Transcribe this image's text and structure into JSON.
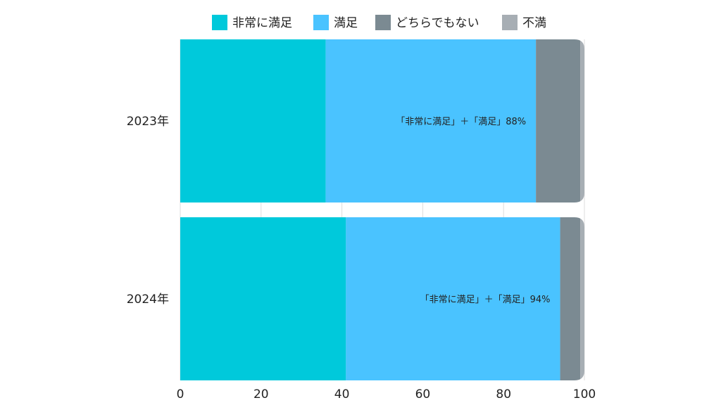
{
  "chart_data": {
    "type": "bar",
    "orientation": "horizontal",
    "stacked": true,
    "categories": [
      "2023年",
      "2024年"
    ],
    "series": [
      {
        "name": "非常に満足",
        "values": [
          36,
          41
        ],
        "color": "#00C9DB"
      },
      {
        "name": "満足",
        "values": [
          52,
          53
        ],
        "color": "#4AC3FF"
      },
      {
        "name": "どちらでもない",
        "values": [
          11,
          5
        ],
        "color": "#7B8A92"
      },
      {
        "name": "不満",
        "values": [
          1,
          1
        ],
        "color": "#A7AEB4"
      }
    ],
    "xlim": [
      0,
      100
    ],
    "xticks": [
      "0",
      "20",
      "40",
      "60",
      "80",
      "100"
    ],
    "annotations": [
      "「非常に満足」＋「満足」88%",
      "「非常に満足」＋「満足」94%"
    ],
    "legend_position": "top",
    "grid": true
  }
}
